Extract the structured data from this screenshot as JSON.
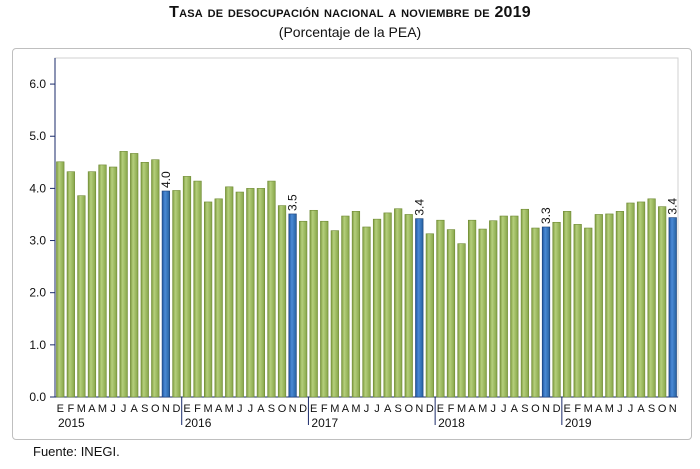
{
  "chart_data": {
    "type": "bar",
    "title": "Tasa de desocupación nacional a noviembre de 2019",
    "subtitle": "(Porcentaje de la PEA)",
    "xlabel": "",
    "ylabel": "",
    "ylim": [
      0,
      6.5
    ],
    "yticks": [
      "0.0",
      "1.0",
      "2.0",
      "3.0",
      "4.0",
      "5.0",
      "6.0"
    ],
    "grid": false,
    "years": [
      "2015",
      "2016",
      "2017",
      "2018",
      "2019"
    ],
    "month_letters": [
      "E",
      "F",
      "M",
      "A",
      "M",
      "J",
      "J",
      "A",
      "S",
      "O",
      "N",
      "D"
    ],
    "values": [
      4.51,
      4.32,
      3.86,
      4.32,
      4.45,
      4.41,
      4.71,
      4.67,
      4.5,
      4.55,
      3.95,
      3.96,
      4.23,
      4.14,
      3.74,
      3.8,
      4.03,
      3.93,
      4.0,
      4.0,
      4.14,
      3.67,
      3.51,
      3.37,
      3.58,
      3.37,
      3.19,
      3.47,
      3.56,
      3.26,
      3.41,
      3.53,
      3.61,
      3.5,
      3.42,
      3.13,
      3.39,
      3.21,
      2.94,
      3.39,
      3.22,
      3.38,
      3.47,
      3.47,
      3.6,
      3.24,
      3.26,
      3.35,
      3.56,
      3.31,
      3.24,
      3.5,
      3.51,
      3.56,
      3.72,
      3.74,
      3.8,
      3.65,
      3.44
    ],
    "highlight_labels": [
      {
        "index": 10,
        "label": "4.0"
      },
      {
        "index": 22,
        "label": "3.5"
      },
      {
        "index": 34,
        "label": "3.4"
      },
      {
        "index": 46,
        "label": "3.3"
      },
      {
        "index": 58,
        "label": "3.4"
      }
    ],
    "colors": {
      "regular": "#8fae4f",
      "highlight": "#2e6fbf"
    }
  },
  "source": "Fuente: INEGI."
}
